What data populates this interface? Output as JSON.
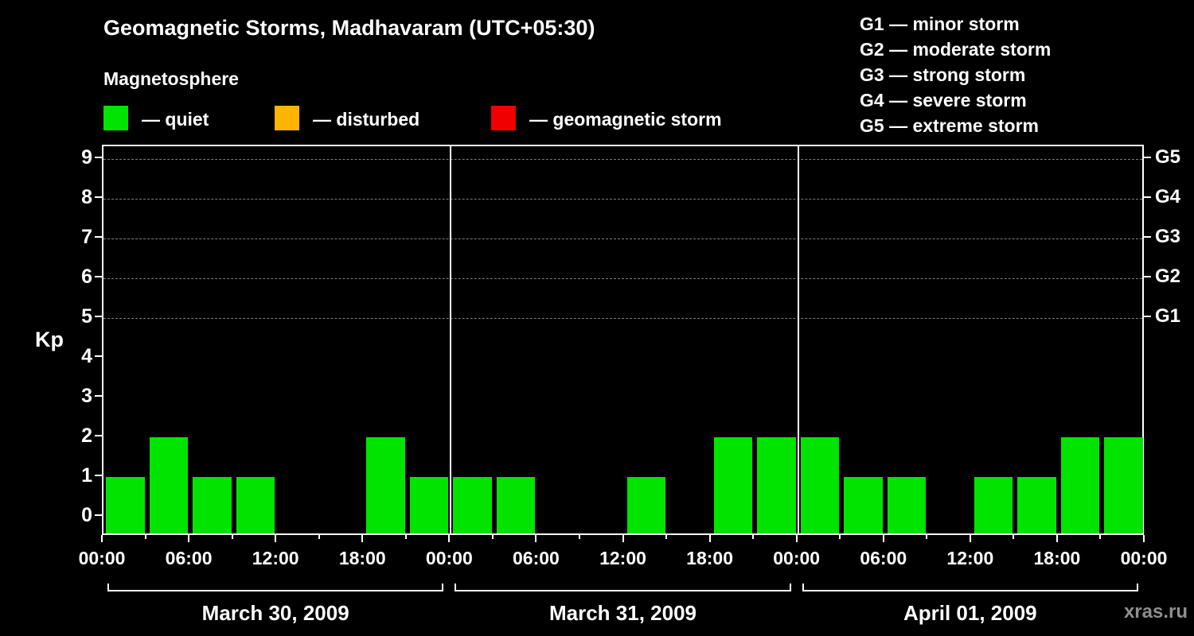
{
  "title": "Geomagnetic Storms, Madhavaram (UTC+05:30)",
  "legend": {
    "title": "Magnetosphere",
    "items": [
      {
        "key": "quiet",
        "label": "— quiet",
        "color": "#00e400"
      },
      {
        "key": "disturbed",
        "label": "— disturbed",
        "color": "#ffb400"
      },
      {
        "key": "geomagnetic-storm",
        "label": "— geomagnetic storm",
        "color": "#f00000"
      }
    ]
  },
  "g_legend": {
    "items": [
      "G1 — minor storm",
      "G2 — moderate storm",
      "G3 — strong storm",
      "G4 — severe storm",
      "G5 — extreme storm"
    ]
  },
  "chart_data": {
    "type": "bar",
    "title": "Geomagnetic Storms, Madhavaram (UTC+05:30)",
    "ylabel": "Kp",
    "ylim": [
      0,
      9
    ],
    "y_ticks": [
      0,
      1,
      2,
      3,
      4,
      5,
      6,
      7,
      8,
      9
    ],
    "right_axis_labels": [
      "G5",
      "G4",
      "G3",
      "G2",
      "G1"
    ],
    "gridline_kp_levels": [
      5,
      6,
      7,
      8,
      9
    ],
    "x_tick_labels": [
      "00:00",
      "06:00",
      "12:00",
      "18:00"
    ],
    "x_final_tick_label": "00:00",
    "interval_hours": 3,
    "days": [
      {
        "date": "March 30, 2009",
        "kp": [
          1,
          2,
          1,
          1,
          0,
          0,
          2,
          1
        ]
      },
      {
        "date": "March 31, 2009",
        "kp": [
          1,
          1,
          0,
          0,
          1,
          0,
          2,
          2
        ]
      },
      {
        "date": "April 01, 2009",
        "kp": [
          2,
          1,
          1,
          0,
          1,
          1,
          2,
          2
        ]
      }
    ],
    "grid": "dashed horizontal at G-levels only",
    "legend_position": "top"
  },
  "watermark": "xras.ru"
}
